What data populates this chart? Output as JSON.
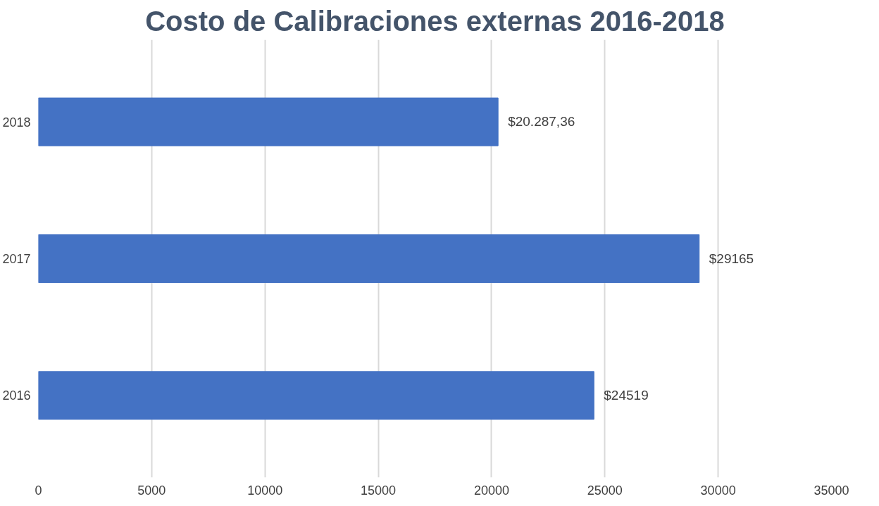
{
  "chart_data": {
    "type": "bar",
    "orientation": "horizontal",
    "title": "Costo de Calibraciones externas 2016-2018",
    "categories": [
      "2018",
      "2017",
      "2016"
    ],
    "values": [
      20287.36,
      29165,
      24519
    ],
    "value_labels": [
      "$20.287,36",
      "$29165",
      "$24519"
    ],
    "color": "#4472c4",
    "xlim": [
      0,
      35000
    ],
    "xticks": [
      0,
      5000,
      10000,
      15000,
      20000,
      25000,
      30000,
      35000
    ],
    "grid": "x"
  }
}
